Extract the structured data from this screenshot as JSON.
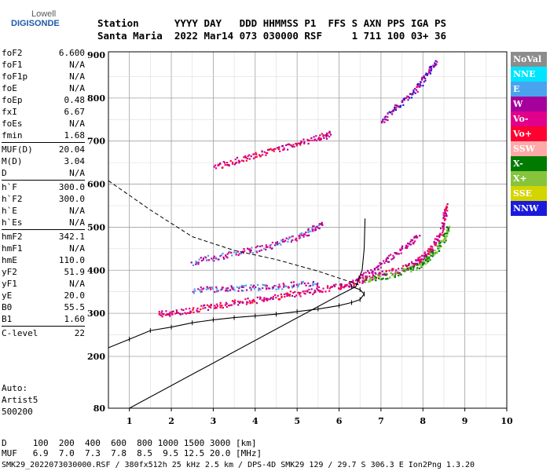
{
  "logo": {
    "line1": "Lowell",
    "line2": "DIGISONDE"
  },
  "header": {
    "line1": "Station      YYYY DAY   DDD HHMMSS P1  FFS S AXN PPS IGA PS",
    "line2": "Santa Maria  2022 Mar14 073 030000 RSF     1 711 100 03+ 36"
  },
  "params": [
    {
      "name": "foF2",
      "value": "6.600"
    },
    {
      "name": "foF1",
      "value": "N/A"
    },
    {
      "name": "foF1p",
      "value": "N/A"
    },
    {
      "name": "foE",
      "value": "N/A"
    },
    {
      "name": "foEp",
      "value": "0.48"
    },
    {
      "name": "fxI",
      "value": "6.67"
    },
    {
      "name": "foEs",
      "value": "N/A"
    },
    {
      "name": "fmin",
      "value": "1.68"
    },
    {
      "name": "MUF(D)",
      "value": "20.04"
    },
    {
      "name": "M(D)",
      "value": "3.04"
    },
    {
      "name": "D",
      "value": "N/A"
    },
    {
      "name": "h`F",
      "value": "300.0"
    },
    {
      "name": "h`F2",
      "value": "300.0"
    },
    {
      "name": "h`E",
      "value": "N/A"
    },
    {
      "name": "h`Es",
      "value": "N/A"
    },
    {
      "name": "hmF2",
      "value": "342.1"
    },
    {
      "name": "hmF1",
      "value": "N/A"
    },
    {
      "name": "hmE",
      "value": "110.0"
    },
    {
      "name": "yF2",
      "value": "51.9"
    },
    {
      "name": "yF1",
      "value": "N/A"
    },
    {
      "name": "yE",
      "value": "20.0"
    },
    {
      "name": "B0",
      "value": "55.5"
    },
    {
      "name": "B1",
      "value": "1.60"
    },
    {
      "name": "C-level",
      "value": "22"
    }
  ],
  "auto": {
    "line1": "Auto:",
    "line2": "Artist5",
    "line3": "500200"
  },
  "legend": [
    {
      "label": "NoVal",
      "color": "#8c8c8c"
    },
    {
      "label": "NNE",
      "color": "#00e5ff"
    },
    {
      "label": "E",
      "color": "#4aa3ee"
    },
    {
      "label": "W",
      "color": "#a6009c"
    },
    {
      "label": "Vo-",
      "color": "#e0008c"
    },
    {
      "label": "Vo+",
      "color": "#ff0030"
    },
    {
      "label": "SSW",
      "color": "#ffa8a8"
    },
    {
      "label": "X-",
      "color": "#007a00"
    },
    {
      "label": "X+",
      "color": "#86c43c"
    },
    {
      "label": "SSE",
      "color": "#d4d400"
    },
    {
      "label": "NNW",
      "color": "#1a1adc"
    }
  ],
  "footer": {
    "line1": "D     100  200  400  600  800 1000 1500 3000 [km]",
    "line2": "MUF   6.9  7.0  7.3  7.8  8.5  9.5 12.5 20.0 [MHz]",
    "line3": "SMK29_2022073030000.RSF / 380fx512h 25 kHz 2.5 km / DPS-4D SMK29 129 / 29.7 S 306.3 E Ion2Png 1.3.20"
  },
  "chart_data": {
    "type": "scatter",
    "xlabel": "",
    "ylabel": "",
    "xlim": [
      0.5,
      10
    ],
    "ylim": [
      80,
      900
    ],
    "xticks": [
      1,
      2,
      3,
      4,
      5,
      6,
      7,
      8,
      9,
      10
    ],
    "yticks": [
      80,
      200,
      300,
      400,
      500,
      600,
      700,
      800,
      900
    ],
    "grid": true,
    "legend_position": "right",
    "echo_traces": [
      {
        "name": "O-trace F2",
        "colors": [
          "#e0008c",
          "#ff0030",
          "#a6009c"
        ],
        "points": [
          [
            1.7,
            300
          ],
          [
            2.0,
            302
          ],
          [
            2.5,
            310
          ],
          [
            3.0,
            318
          ],
          [
            3.5,
            326
          ],
          [
            4.0,
            332
          ],
          [
            4.5,
            340
          ],
          [
            5.0,
            348
          ],
          [
            5.5,
            356
          ],
          [
            6.0,
            364
          ],
          [
            6.3,
            372
          ],
          [
            6.6,
            382
          ],
          [
            7.0,
            392
          ],
          [
            7.5,
            405
          ],
          [
            7.8,
            418
          ],
          [
            8.0,
            432
          ],
          [
            8.2,
            452
          ],
          [
            8.4,
            485
          ],
          [
            8.5,
            520
          ],
          [
            8.55,
            555
          ]
        ]
      },
      {
        "name": "X-trace F2",
        "colors": [
          "#86c43c",
          "#007a00"
        ],
        "points": [
          [
            6.6,
            378
          ],
          [
            7.0,
            386
          ],
          [
            7.5,
            398
          ],
          [
            7.9,
            412
          ],
          [
            8.1,
            428
          ],
          [
            8.3,
            448
          ],
          [
            8.5,
            475
          ],
          [
            8.6,
            505
          ]
        ]
      },
      {
        "name": "2nd hop F2",
        "colors": [
          "#a6009c",
          "#e0008c",
          "#4aa3ee"
        ],
        "points": [
          [
            2.5,
            420
          ],
          [
            3.0,
            432
          ],
          [
            3.5,
            440
          ],
          [
            4.0,
            450
          ],
          [
            4.5,
            462
          ],
          [
            5.0,
            478
          ],
          [
            5.3,
            492
          ],
          [
            5.6,
            510
          ]
        ]
      },
      {
        "name": "2nd hop upper",
        "colors": [
          "#e0008c",
          "#a6009c"
        ],
        "points": [
          [
            6.4,
            380
          ],
          [
            6.8,
            400
          ],
          [
            7.2,
            430
          ],
          [
            7.6,
            460
          ],
          [
            7.9,
            480
          ]
        ]
      },
      {
        "name": "3rd hop",
        "colors": [
          "#a6009c",
          "#e0008c",
          "#ff0030"
        ],
        "points": [
          [
            3.0,
            640
          ],
          [
            3.5,
            655
          ],
          [
            4.0,
            668
          ],
          [
            4.5,
            682
          ],
          [
            5.0,
            696
          ],
          [
            5.5,
            710
          ],
          [
            5.8,
            718
          ]
        ]
      },
      {
        "name": "4th hop",
        "colors": [
          "#a6009c",
          "#e0008c",
          "#1a1adc"
        ],
        "points": [
          [
            7.0,
            745
          ],
          [
            7.3,
            775
          ],
          [
            7.6,
            800
          ],
          [
            7.9,
            830
          ],
          [
            8.1,
            860
          ],
          [
            8.3,
            890
          ]
        ]
      },
      {
        "name": "spread 350km",
        "colors": [
          "#a6009c",
          "#e0008c",
          "#4aa3ee"
        ],
        "points": [
          [
            2.5,
            355
          ],
          [
            3.0,
            358
          ],
          [
            3.5,
            360
          ],
          [
            4.0,
            362
          ],
          [
            4.5,
            364
          ],
          [
            5.0,
            368
          ],
          [
            5.5,
            372
          ]
        ]
      }
    ],
    "profile_curve": [
      [
        1.0,
        80
      ],
      [
        6.0,
        342
      ],
      [
        6.4,
        362
      ],
      [
        6.55,
        400
      ],
      [
        6.6,
        450
      ],
      [
        6.62,
        520
      ]
    ],
    "muf_dashed_curve": [
      [
        0.5,
        608
      ],
      [
        1.5,
        540
      ],
      [
        2.5,
        478
      ],
      [
        3.5,
        446
      ],
      [
        4.5,
        425
      ],
      [
        5.5,
        398
      ],
      [
        6.3,
        372
      ],
      [
        6.5,
        365
      ]
    ],
    "virtual_height_curve": [
      [
        0.5,
        220
      ],
      [
        1.0,
        240
      ],
      [
        1.5,
        260
      ],
      [
        2.0,
        268
      ],
      [
        2.5,
        278
      ],
      [
        3.0,
        285
      ],
      [
        3.5,
        290
      ],
      [
        4.0,
        294
      ],
      [
        4.5,
        298
      ],
      [
        5.0,
        304
      ],
      [
        5.5,
        310
      ],
      [
        6.0,
        318
      ],
      [
        6.3,
        325
      ],
      [
        6.5,
        332
      ],
      [
        6.6,
        345
      ],
      [
        6.5,
        355
      ],
      [
        6.3,
        362
      ]
    ]
  }
}
